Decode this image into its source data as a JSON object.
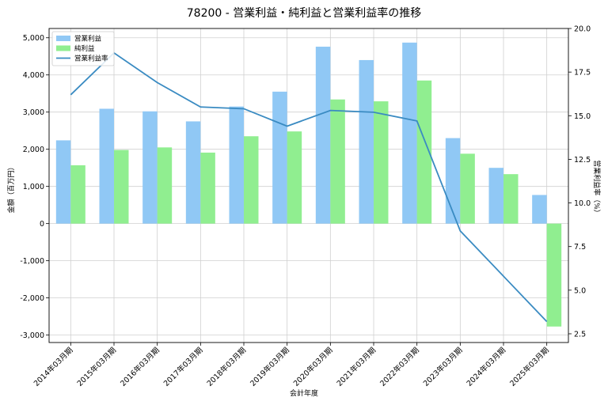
{
  "chart_data": {
    "type": "bar",
    "title": "78200 - 営業利益・純利益と営業利益率の推移",
    "xlabel": "会計年度",
    "ylabel": "金額（百万円）",
    "y2label": "営業利益率（%）",
    "categories": [
      "2014年03月期",
      "2015年03月期",
      "2016年03月期",
      "2017年03月期",
      "2018年03月期",
      "2019年03月期",
      "2020年03月期",
      "2021年03月期",
      "2022年03月期",
      "2023年03月期",
      "2024年03月期",
      "2025年03月期"
    ],
    "series": [
      {
        "name": "営業利益",
        "kind": "bar",
        "axis": "left",
        "color": "#90c8f5",
        "values": [
          2240,
          3090,
          3020,
          2750,
          3150,
          3550,
          4760,
          4400,
          4870,
          2300,
          1500,
          770
        ]
      },
      {
        "name": "純利益",
        "kind": "bar",
        "axis": "left",
        "color": "#90ee90",
        "values": [
          1570,
          1980,
          2050,
          1910,
          2350,
          2480,
          3340,
          3290,
          3850,
          1880,
          1330,
          -2770
        ]
      },
      {
        "name": "営業利益率",
        "kind": "line",
        "axis": "right",
        "color": "#3a8bc2",
        "values": [
          16.2,
          18.6,
          16.9,
          15.5,
          15.4,
          14.4,
          15.3,
          15.2,
          14.7,
          8.4,
          5.8,
          3.2
        ]
      }
    ],
    "ylim": [
      -3200,
      5250
    ],
    "y2lim": [
      2.0,
      20.0
    ],
    "yticks": [
      -3000,
      -2000,
      -1000,
      0,
      1000,
      2000,
      3000,
      4000,
      5000
    ],
    "yticklabels": [
      "-3,000",
      "-2,000",
      "-1,000",
      "0",
      "1,000",
      "2,000",
      "3,000",
      "4,000",
      "5,000"
    ],
    "y2ticks": [
      2.5,
      5.0,
      7.5,
      10.0,
      12.5,
      15.0,
      17.5,
      20.0
    ],
    "y2ticklabels": [
      "2.5",
      "5.0",
      "7.5",
      "10.0",
      "12.5",
      "15.0",
      "17.5",
      "20.0"
    ],
    "grid": true,
    "legend": "top-left"
  }
}
